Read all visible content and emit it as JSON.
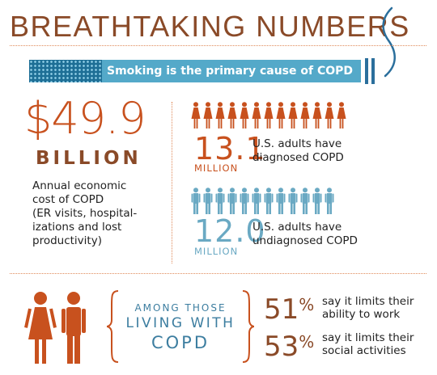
{
  "title": "BREATHTAKING NUMBERS",
  "banner": {
    "text": "Smoking is the primary cause of COPD"
  },
  "cost": {
    "amount": "$49.9",
    "unit": "BILLION",
    "description_lines": [
      "Annual economic",
      "cost of COPD",
      "(ER visits, hospital-",
      "izations and lost",
      "productivity)"
    ]
  },
  "diagnosed": {
    "number": "13.1",
    "unit": "MILLION",
    "text_lines": [
      "U.S. adults have",
      "diagnosed COPD"
    ],
    "icon": "woman-icon",
    "icon_count": 13,
    "color": "#c8511e"
  },
  "undiagnosed": {
    "number": "12.0",
    "unit": "MILLION",
    "text_lines": [
      "U.S. adults have",
      "undiagnosed COPD"
    ],
    "icon": "person-icon",
    "icon_count": 12,
    "color": "#6aa9c3"
  },
  "living": {
    "lines": [
      "AMONG THOSE",
      "LIVING WITH",
      "COPD"
    ],
    "stats": [
      {
        "pct": "51",
        "sign": "%",
        "text_lines": [
          "say it limits their",
          "ability to work"
        ]
      },
      {
        "pct": "53",
        "sign": "%",
        "text_lines": [
          "say it limits their",
          "social activities"
        ]
      }
    ]
  },
  "colors": {
    "orange": "#c8511e",
    "brown": "#8a4a28",
    "blue": "#54a9c9",
    "dark_blue": "#2b6f9c"
  }
}
